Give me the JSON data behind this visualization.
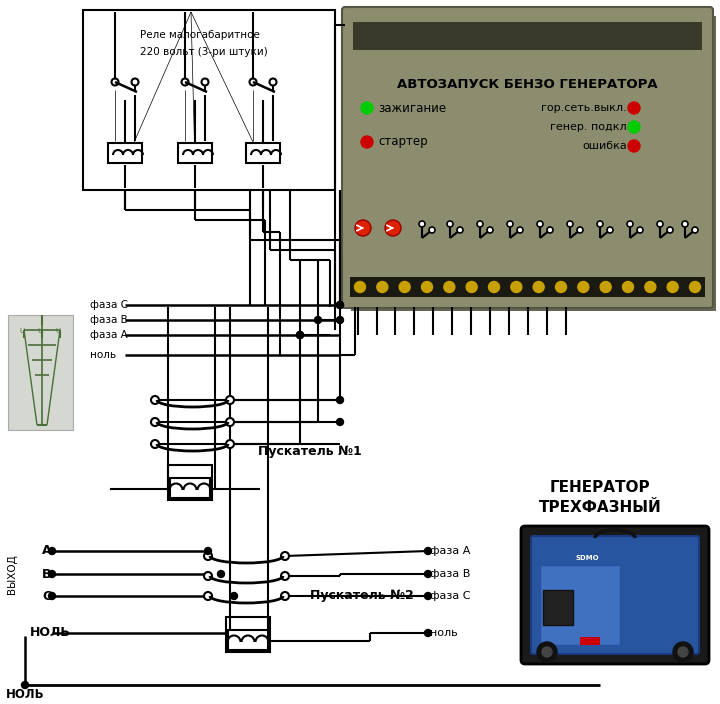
{
  "bg_color": "#ffffff",
  "relay_box_label1": "Реле малогабаритное",
  "relay_box_label2": "220 вольт (3-ри штуки)",
  "device_title": "АВТОЗАПУСК БЕНЗО ГЕНЕРАТОРА",
  "device_color": "#8c8c6e",
  "device_shadow": "#6a6a50",
  "device_top_color": "#3a3a2a",
  "device_term_color": "#1a1a12",
  "device_gold": "#c8a000",
  "label_ignition": "зажигание",
  "label_starter": "стартер",
  "label_gor_set": "гор.сеть.выкл.",
  "label_gen_podkl": "генер. подкл",
  "label_oshibka": "ошибка",
  "led_green": "#00cc00",
  "led_red": "#cc0000",
  "label_faza_C": "фаза С",
  "label_faza_B": "фаза В",
  "label_faza_A": "фаза А",
  "label_nol": "ноль",
  "label_pusk1": "Пускатель №1",
  "label_pusk2": "Пускатель №2",
  "label_generator": "ГЕНЕРАТОР",
  "label_trehfaz": "ТРЕХФАЗНЫЙ",
  "label_A": "A",
  "label_B": "B",
  "label_C": "C",
  "label_NOLL_bot": "НОЛЬ",
  "label_VYHOD": "ВЫХОД",
  "out_faza_A": "фаза А",
  "out_faza_B": "фаза В",
  "out_faza_C": "фаза С",
  "out_nol": "ноль",
  "line_color": "#000000",
  "line_width": 1.5,
  "tower_color": "#4a6e3a"
}
